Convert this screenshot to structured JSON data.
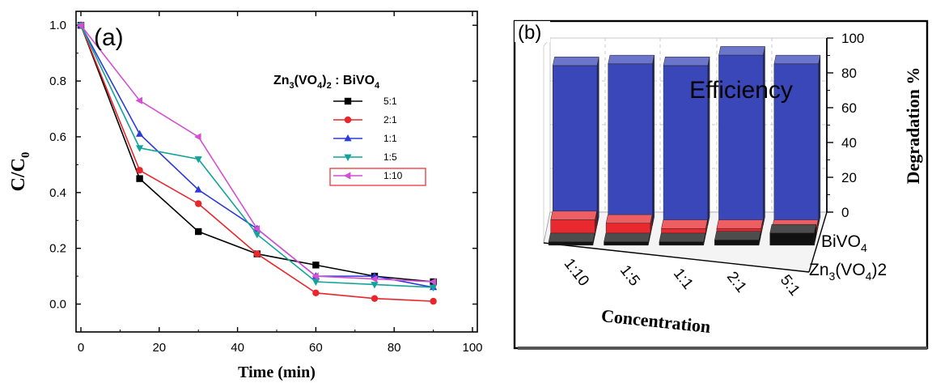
{
  "chart_data": [
    {
      "type": "line",
      "panel_label": "(a)",
      "xlabel": "Time (min)",
      "ylabel_main": "C/C",
      "ylabel_sub": "0",
      "xlim": [
        0,
        100
      ],
      "ylim": [
        -0.1,
        1.05
      ],
      "x_ticks": [
        "0",
        "20",
        "40",
        "60",
        "80",
        "100"
      ],
      "y_ticks": [
        "0.0",
        "0.2",
        "0.4",
        "0.6",
        "0.8",
        "1.0"
      ],
      "legend_title": {
        "p1": "Zn",
        "s1": "3",
        "p2": "(VO",
        "s2": "4",
        "p3": ")",
        "s3": "2",
        "p4": " : BiVO",
        "s4": "4"
      },
      "legend_position": "right",
      "x": [
        0,
        15,
        30,
        45,
        60,
        75,
        90
      ],
      "series": [
        {
          "name": "5:1",
          "color": "#000000",
          "marker": "square",
          "values": [
            1.0,
            0.45,
            0.26,
            0.18,
            0.14,
            0.1,
            0.08
          ]
        },
        {
          "name": "2:1",
          "color": "#e8262b",
          "marker": "circle",
          "values": [
            1.0,
            0.48,
            0.36,
            0.18,
            0.04,
            0.02,
            0.01
          ]
        },
        {
          "name": "1:1",
          "color": "#2b3bd6",
          "marker": "triangle-up",
          "values": [
            1.0,
            0.61,
            0.41,
            0.27,
            0.1,
            0.1,
            0.06
          ]
        },
        {
          "name": "1:5",
          "color": "#12a39a",
          "marker": "triangle-down",
          "values": [
            1.0,
            0.56,
            0.52,
            0.25,
            0.08,
            0.07,
            0.06
          ]
        },
        {
          "name": "1:10",
          "color": "#d34fd3",
          "marker": "triangle-left",
          "values": [
            1.0,
            0.73,
            0.6,
            0.27,
            0.1,
            0.09,
            0.08
          ]
        }
      ]
    },
    {
      "type": "bar",
      "panel_label": "(b)",
      "annotation": "Efficiency",
      "xlabel": "Concentration",
      "zlabel": "Degradation %",
      "zlim": [
        0,
        100
      ],
      "z_ticks": [
        "0",
        "20",
        "40",
        "60",
        "80",
        "100"
      ],
      "categories": [
        "1:10",
        "1:5",
        "1:1",
        "2:1",
        "5:1"
      ],
      "series": [
        {
          "name": "Efficiency",
          "color": "#3a47b8",
          "values": [
            92,
            93,
            92,
            98,
            93
          ]
        },
        {
          "name": "BiVO4",
          "label_main": "BiVO",
          "label_sub": "4",
          "color": "#e8292f",
          "values": [
            9,
            7,
            4,
            4,
            4
          ]
        },
        {
          "name": "Zn3(VO4)2",
          "label_p1": "Zn",
          "label_s1": "3",
          "label_p2": "(VO",
          "label_s2": "4",
          "label_p3": ")2",
          "color": "#111111",
          "values": [
            2,
            2,
            2,
            3,
            7
          ]
        }
      ]
    }
  ]
}
